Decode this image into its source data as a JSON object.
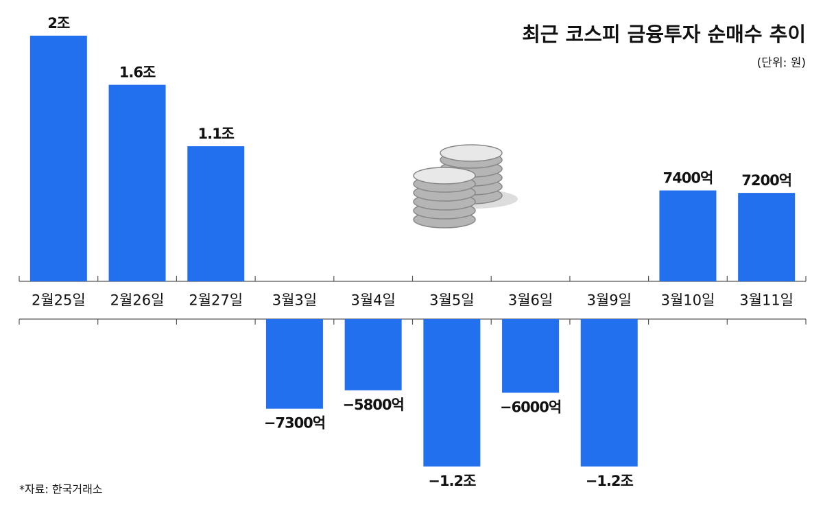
{
  "chart_data": {
    "type": "bar",
    "title": "최근 코스피 금융투자 순매수 추이",
    "subtitle": "(단위: 원)",
    "source": "*자료: 한국거래소",
    "categories": [
      "2월25일",
      "2월26일",
      "2월27일",
      "3월3일",
      "3월4일",
      "3월5일",
      "3월6일",
      "3월9일",
      "3월10일",
      "3월11일"
    ],
    "values": [
      20000,
      16000,
      11000,
      -7300,
      -5800,
      -12000,
      -6000,
      -12000,
      7400,
      7200
    ],
    "value_labels": [
      "2조",
      "1.6조",
      "1.1조",
      "−7300억",
      "−5800억",
      "−1.2조",
      "−6000억",
      "−1.2조",
      "7400억",
      "7200억"
    ],
    "color": "#2370ef"
  }
}
